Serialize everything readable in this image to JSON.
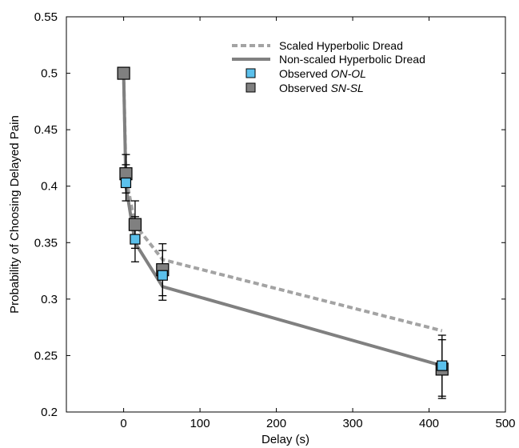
{
  "chart_data": {
    "type": "line",
    "xlabel": "Delay (s)",
    "ylabel": "Probability of Choosing Delayed Pain",
    "xlim": [
      -75,
      500
    ],
    "ylim": [
      0.2,
      0.55
    ],
    "xticks": [
      0,
      100,
      200,
      300,
      400,
      500
    ],
    "yticks": [
      0.2,
      0.25,
      0.3,
      0.35,
      0.4,
      0.45,
      0.5,
      0.55
    ],
    "ytick_labels": [
      "0.2",
      "0.25",
      "0.3",
      "0.35",
      "0.4",
      "0.45",
      "0.5",
      "0.55"
    ],
    "grid": false,
    "legend_position": "top-right",
    "series": [
      {
        "name": "Scaled Hyperbolic Dread",
        "kind": "line",
        "style": "dashed",
        "color": "#a3a3a3",
        "x": [
          0,
          3,
          15,
          51,
          417
        ],
        "y": [
          0.5,
          0.408,
          0.366,
          0.335,
          0.272
        ]
      },
      {
        "name": "Non-scaled Hyperbolic Dread",
        "kind": "line",
        "style": "solid",
        "color": "#808080",
        "x": [
          0,
          3,
          15,
          51,
          417
        ],
        "y": [
          0.5,
          0.4,
          0.35,
          0.311,
          0.241
        ]
      },
      {
        "name_parts": [
          "Observed ",
          "ON-OL"
        ],
        "kind": "marker",
        "color": "#5bc0eb",
        "x": [
          3,
          15,
          51,
          417
        ],
        "y": [
          0.403,
          0.353,
          0.321,
          0.241
        ],
        "err": [
          0.016,
          0.02,
          0.022,
          0.027
        ]
      },
      {
        "name_parts": [
          "Observed ",
          "SN-SL"
        ],
        "kind": "marker",
        "color": "#808080",
        "x": [
          0,
          3,
          15,
          51,
          417
        ],
        "y": [
          0.5,
          0.411,
          0.366,
          0.326,
          0.238
        ],
        "err": [
          0,
          0.017,
          0.021,
          0.023,
          0.026
        ]
      }
    ]
  }
}
